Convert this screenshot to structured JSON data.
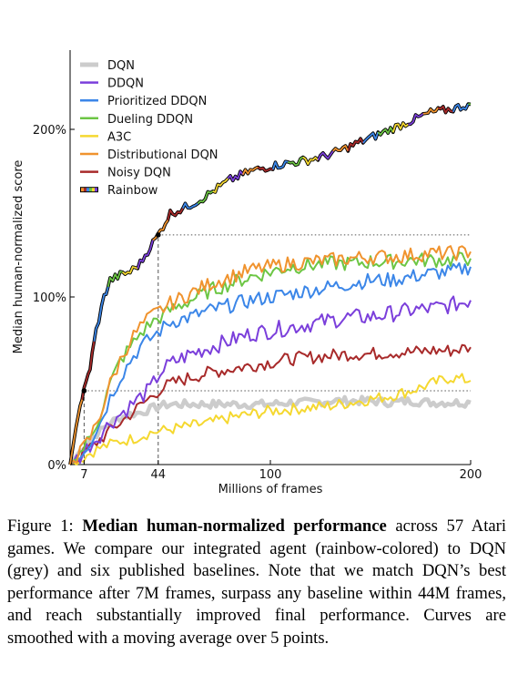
{
  "chart_data": {
    "type": "line",
    "xlabel": "Millions of frames",
    "ylabel": "Median human-normalized score",
    "xlim": [
      0,
      200
    ],
    "ylim": [
      0,
      250
    ],
    "x_ticks": [
      7,
      44,
      100,
      200
    ],
    "x_tick_labels": [
      "7",
      "44",
      "100",
      "200"
    ],
    "y_ticks": [
      0,
      100,
      200
    ],
    "y_tick_labels": [
      "0%",
      "100%",
      "200%"
    ],
    "legend_position": "top-left",
    "annotations": [
      {
        "type": "marker",
        "x": 7,
        "y": 44
      },
      {
        "type": "marker",
        "x": 44,
        "y": 137
      },
      {
        "type": "hline",
        "y": 137,
        "x_from": 44,
        "x_to": 200
      },
      {
        "type": "hline",
        "y": 44,
        "x_from": 7,
        "x_to": 200
      },
      {
        "type": "vline",
        "x": 7,
        "y_from": 0,
        "y_to": 44
      },
      {
        "type": "vline",
        "x": 44,
        "y_from": 0,
        "y_to": 137
      }
    ],
    "series": [
      {
        "name": "DQN",
        "color": "#cccccc",
        "x": [
          0,
          5,
          10,
          15,
          20,
          25,
          30,
          35,
          40,
          45,
          50,
          60,
          70,
          80,
          90,
          100,
          110,
          120,
          130,
          140,
          150,
          160,
          170,
          180,
          190,
          200
        ],
        "y": [
          0,
          8,
          15,
          20,
          25,
          28,
          30,
          31,
          33,
          35,
          36,
          36,
          36,
          36,
          36,
          36,
          37,
          37,
          38,
          38,
          38,
          37,
          38,
          37,
          37,
          37
        ]
      },
      {
        "name": "DDQN",
        "color": "#7b3fdb",
        "x": [
          0,
          5,
          10,
          15,
          20,
          25,
          30,
          35,
          40,
          45,
          50,
          60,
          70,
          80,
          90,
          100,
          110,
          120,
          130,
          140,
          150,
          160,
          170,
          180,
          190,
          200
        ],
        "y": [
          0,
          5,
          12,
          18,
          25,
          30,
          35,
          40,
          45,
          55,
          60,
          66,
          70,
          74,
          78,
          80,
          82,
          84,
          86,
          88,
          88,
          90,
          92,
          93,
          95,
          98
        ]
      },
      {
        "name": "Prioritized DDQN",
        "color": "#3b86e8",
        "x": [
          0,
          5,
          10,
          15,
          20,
          25,
          30,
          35,
          40,
          45,
          50,
          60,
          70,
          80,
          90,
          100,
          110,
          120,
          130,
          140,
          150,
          160,
          170,
          180,
          190,
          200
        ],
        "y": [
          0,
          6,
          14,
          25,
          40,
          52,
          62,
          70,
          75,
          80,
          85,
          88,
          92,
          95,
          98,
          100,
          102,
          104,
          106,
          108,
          110,
          110,
          112,
          114,
          115,
          118
        ]
      },
      {
        "name": "Dueling DDQN",
        "color": "#6cc644",
        "x": [
          0,
          5,
          10,
          15,
          20,
          25,
          30,
          35,
          40,
          45,
          50,
          60,
          70,
          80,
          90,
          100,
          110,
          120,
          130,
          140,
          150,
          160,
          170,
          180,
          190,
          200
        ],
        "y": [
          0,
          7,
          16,
          30,
          48,
          62,
          70,
          78,
          84,
          88,
          92,
          98,
          104,
          108,
          112,
          115,
          118,
          119,
          120,
          120,
          121,
          121,
          122,
          122,
          122,
          123
        ]
      },
      {
        "name": "A3C",
        "color": "#f5d830",
        "x": [
          0,
          5,
          10,
          15,
          20,
          25,
          30,
          35,
          40,
          45,
          50,
          60,
          70,
          80,
          90,
          100,
          110,
          120,
          130,
          140,
          150,
          160,
          170,
          180,
          190,
          200
        ],
        "y": [
          0,
          3,
          7,
          10,
          12,
          14,
          15,
          17,
          19,
          20,
          21,
          23,
          25,
          28,
          30,
          32,
          33,
          34,
          35,
          37,
          39,
          41,
          44,
          48,
          52,
          50
        ]
      },
      {
        "name": "Distributional DQN",
        "color": "#f0932e",
        "x": [
          0,
          5,
          10,
          15,
          20,
          25,
          30,
          35,
          40,
          45,
          50,
          60,
          70,
          80,
          90,
          100,
          110,
          120,
          130,
          140,
          150,
          160,
          170,
          180,
          190,
          200
        ],
        "y": [
          0,
          7,
          16,
          30,
          48,
          62,
          74,
          82,
          88,
          92,
          96,
          102,
          108,
          112,
          116,
          118,
          120,
          121,
          122,
          123,
          124,
          124,
          125,
          126,
          126,
          127
        ]
      },
      {
        "name": "Noisy DQN",
        "color": "#a82a2a",
        "x": [
          0,
          5,
          10,
          15,
          20,
          25,
          30,
          35,
          40,
          45,
          50,
          60,
          70,
          80,
          90,
          100,
          110,
          120,
          130,
          140,
          150,
          160,
          170,
          180,
          190,
          200
        ],
        "y": [
          0,
          5,
          10,
          15,
          20,
          25,
          30,
          35,
          40,
          45,
          48,
          52,
          55,
          57,
          59,
          61,
          63,
          64,
          65,
          66,
          66,
          67,
          67,
          68,
          68,
          70
        ]
      },
      {
        "name": "Rainbow",
        "color": "rainbow",
        "x": [
          0,
          2,
          4,
          6,
          7,
          10,
          13,
          17,
          20,
          25,
          30,
          35,
          40,
          44,
          50,
          55,
          60,
          65,
          70,
          80,
          90,
          100,
          110,
          120,
          130,
          140,
          150,
          160,
          170,
          180,
          190,
          200
        ],
        "y": [
          0,
          15,
          30,
          40,
          44,
          58,
          80,
          100,
          110,
          113,
          115,
          120,
          130,
          137,
          150,
          152,
          155,
          158,
          162,
          170,
          175,
          178,
          180,
          182,
          185,
          190,
          195,
          200,
          205,
          210,
          212,
          215
        ]
      }
    ]
  },
  "caption": {
    "prefix": "Figure 1: ",
    "bold": "Median human-normalized performance",
    "rest": " across 57 Atari games. We compare our integrated agent (rainbow-colored) to DQN (grey) and six published baselines. Note that we match DQN’s best performance after 7M frames, surpass any baseline within 44M frames, and reach substantially improved final performance. Curves are smoothed with a moving average over 5 points."
  },
  "colors": {
    "rainbow_segments": [
      "#f0932e",
      "#a82a2a",
      "#3b86e8",
      "#6cc644",
      "#f5d830",
      "#7b3fdb"
    ],
    "guide_line": "#555555",
    "axis": "#000000"
  }
}
